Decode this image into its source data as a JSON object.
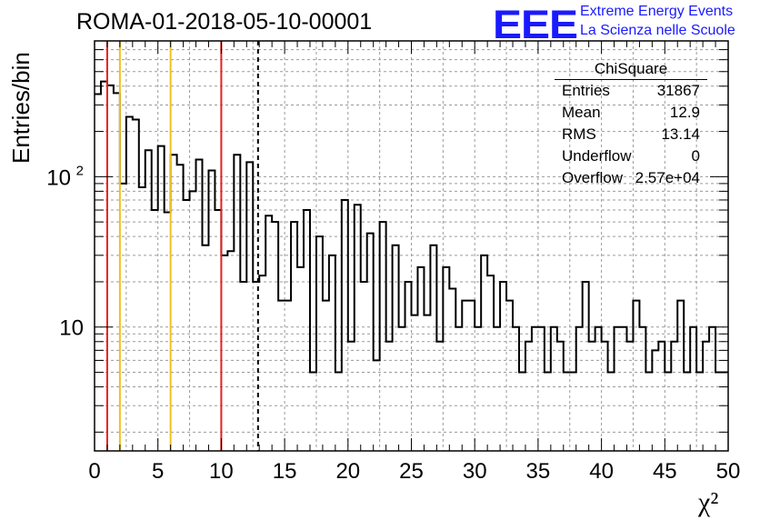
{
  "header": {
    "title": "ROMA-01-2018-05-10-00001",
    "logo_text": "EEE",
    "logo_line1": "Extreme Energy Events",
    "logo_line2": "La Scienza nelle Scuole",
    "accent_color": "#1a1aff"
  },
  "stats_box": {
    "title": "ChiSquare",
    "rows": [
      {
        "key": "Entries",
        "value": "31867"
      },
      {
        "key": "Mean",
        "value": "12.9"
      },
      {
        "key": "RMS",
        "value": "13.14"
      },
      {
        "key": "Underflow",
        "value": "0"
      },
      {
        "key": "Overflow",
        "value": "2.57e+04"
      }
    ]
  },
  "chart_data": {
    "type": "histogram",
    "xlabel": "χ²",
    "ylabel": "Entries/bin",
    "xlim": [
      0,
      50
    ],
    "ylim": [
      1.5,
      800
    ],
    "log_y": true,
    "grid": true,
    "x_ticks": [
      0,
      5,
      10,
      15,
      20,
      25,
      30,
      35,
      40,
      45,
      50
    ],
    "y_tick_labels": [
      {
        "value": 10,
        "label": "10"
      },
      {
        "value": 100,
        "label": "10^2"
      }
    ],
    "bin_width": 0.5,
    "values": [
      354,
      430,
      405,
      360,
      90,
      250,
      240,
      85,
      150,
      60,
      160,
      58,
      140,
      120,
      70,
      80,
      130,
      35,
      110,
      60,
      30,
      32,
      140,
      20,
      125,
      20,
      22,
      55,
      50,
      15,
      15,
      50,
      25,
      60,
      5,
      40,
      15,
      30,
      5,
      70,
      8,
      65,
      20,
      42,
      6,
      50,
      8,
      35,
      10,
      20,
      12,
      25,
      12,
      35,
      8,
      25,
      18,
      10,
      15,
      15,
      10,
      30,
      22,
      10,
      20,
      15,
      10,
      5,
      8,
      10,
      10,
      5,
      10,
      8,
      5,
      5,
      10,
      20,
      8,
      10,
      8,
      5,
      10,
      10,
      8,
      15,
      10,
      5,
      7,
      8,
      5,
      8,
      15,
      5,
      10,
      5,
      8,
      10,
      5,
      5
    ],
    "vertical_lines": [
      {
        "x": 1,
        "color": "#e8201e",
        "style": "solid"
      },
      {
        "x": 2,
        "color": "#f0c020",
        "style": "solid"
      },
      {
        "x": 6,
        "color": "#f0c020",
        "style": "solid"
      },
      {
        "x": 10,
        "color": "#e8201e",
        "style": "solid"
      },
      {
        "x": 12.9,
        "color": "#000000",
        "style": "dashed"
      }
    ]
  }
}
